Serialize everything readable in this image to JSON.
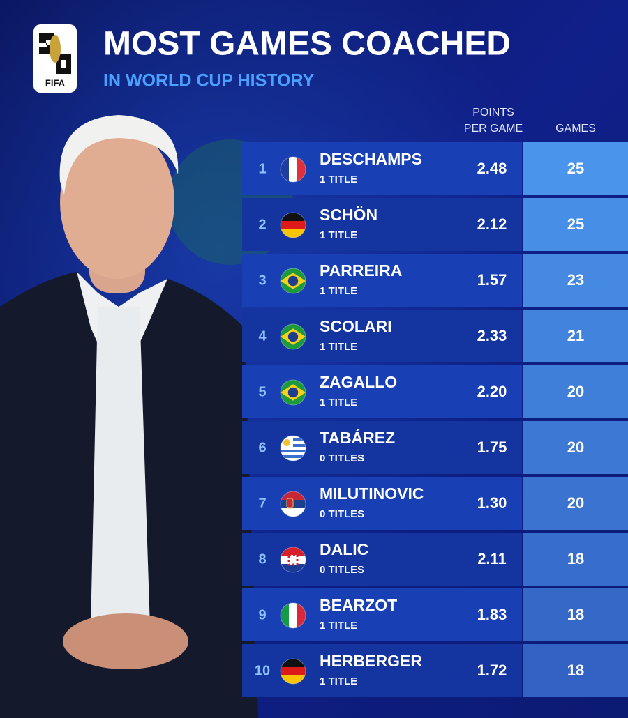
{
  "header": {
    "logo_text": "FIFA",
    "title": "MOST GAMES COACHED",
    "subtitle": "IN WORLD CUP HISTORY"
  },
  "columns": {
    "points_per_game": [
      "POINTS",
      "PER GAME"
    ],
    "games": "GAMES"
  },
  "table": {
    "rows": [
      [
        "1",
        "DESCHAMPS",
        "1 TITLE",
        "2.48",
        "25"
      ],
      [
        "2",
        "SCHÖN",
        "1 TITLE",
        "2.12",
        "25"
      ],
      [
        "3",
        "PARREIRA",
        "1 TITLE",
        "1.57",
        "23"
      ],
      [
        "4",
        "SCOLARI",
        "1 TITLE",
        "2.33",
        "21"
      ],
      [
        "5",
        "ZAGALLO",
        "1 TITLE",
        "2.20",
        "20"
      ],
      [
        "6",
        "TABÁREZ",
        "0 TITLES",
        "1.75",
        "20"
      ],
      [
        "7",
        "MILUTINOVIC",
        "0 TITLES",
        "1.30",
        "20"
      ],
      [
        "8",
        "DALIC",
        "0 TITLES",
        "2.11",
        "18"
      ],
      [
        "9",
        "BEARZOT",
        "1 TITLE",
        "1.83",
        "18"
      ],
      [
        "10",
        "HERBERGER",
        "1 TITLE",
        "1.72",
        "18"
      ]
    ]
  }
}
